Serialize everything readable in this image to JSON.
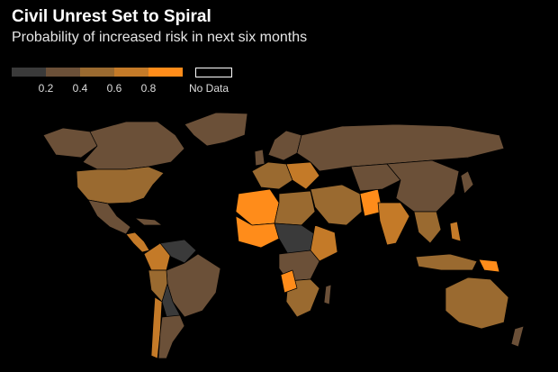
{
  "title": "Civil Unrest Set to Spiral",
  "subtitle": "Probability of increased risk in next six months",
  "legend": {
    "bins": [
      {
        "color": "#3a3a3a"
      },
      {
        "color": "#6b5038"
      },
      {
        "color": "#9a6a30"
      },
      {
        "color": "#c47a28"
      },
      {
        "color": "#ff8c1a"
      }
    ],
    "ticks": [
      "0.2",
      "0.4",
      "0.6",
      "0.8"
    ],
    "no_data_label": "No Data"
  },
  "colors": {
    "background": "#000000",
    "low": "#3a3a3a",
    "mid_low": "#6b5038",
    "mid": "#9a6a30",
    "mid_high": "#c47a28",
    "high": "#ff8c1a"
  }
}
